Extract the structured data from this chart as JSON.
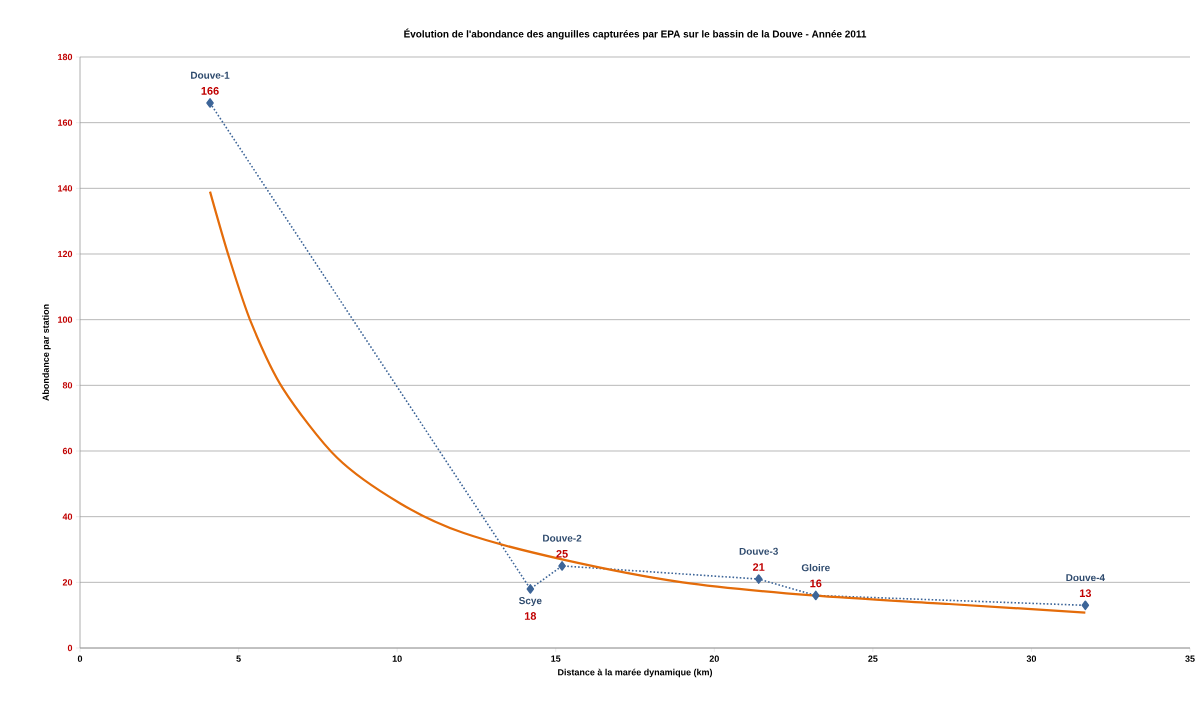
{
  "chart_data": {
    "type": "scatter",
    "title": "Évolution de l'abondance des anguilles capturées par EPA sur le bassin de la Douve - Année 2011",
    "xlabel": "Distance à la marée dynamique (km)",
    "ylabel": "Abondance par station",
    "series": [
      {
        "color": "#3d6598",
        "marker": "diamond",
        "line_style": "dotted",
        "x": [
          4.1,
          14.2,
          15.2,
          21.4,
          23.2,
          31.7
        ],
        "values": [
          166,
          18,
          25,
          21,
          16,
          13
        ],
        "value_labels": [
          "166",
          "18",
          "25",
          "21",
          "16",
          "13"
        ]
      },
      {
        "type": "line",
        "color": "#e46c0a",
        "marker": "none",
        "line_style": "solid",
        "x": [
          4.1,
          4.7,
          5.4,
          6.4,
          8.1,
          10.1,
          12.1,
          15.2,
          19.0,
          23.1,
          27.4,
          31.7
        ],
        "values": [
          139,
          119,
          99,
          79,
          58,
          44,
          35,
          27,
          20,
          16,
          13.4,
          10.8
        ]
      }
    ],
    "annotations": [
      "Douve-1",
      "Scye",
      "Douve-2",
      "Douve-3",
      "Gloire",
      "Douve-4"
    ],
    "xlim": [
      0,
      35
    ],
    "ylim": [
      0,
      180
    ],
    "xticks": [
      0,
      5,
      10,
      15,
      20,
      25,
      30,
      35
    ],
    "yticks": [
      0,
      20,
      40,
      60,
      80,
      100,
      120,
      140,
      160,
      180
    ],
    "grid": "y"
  }
}
